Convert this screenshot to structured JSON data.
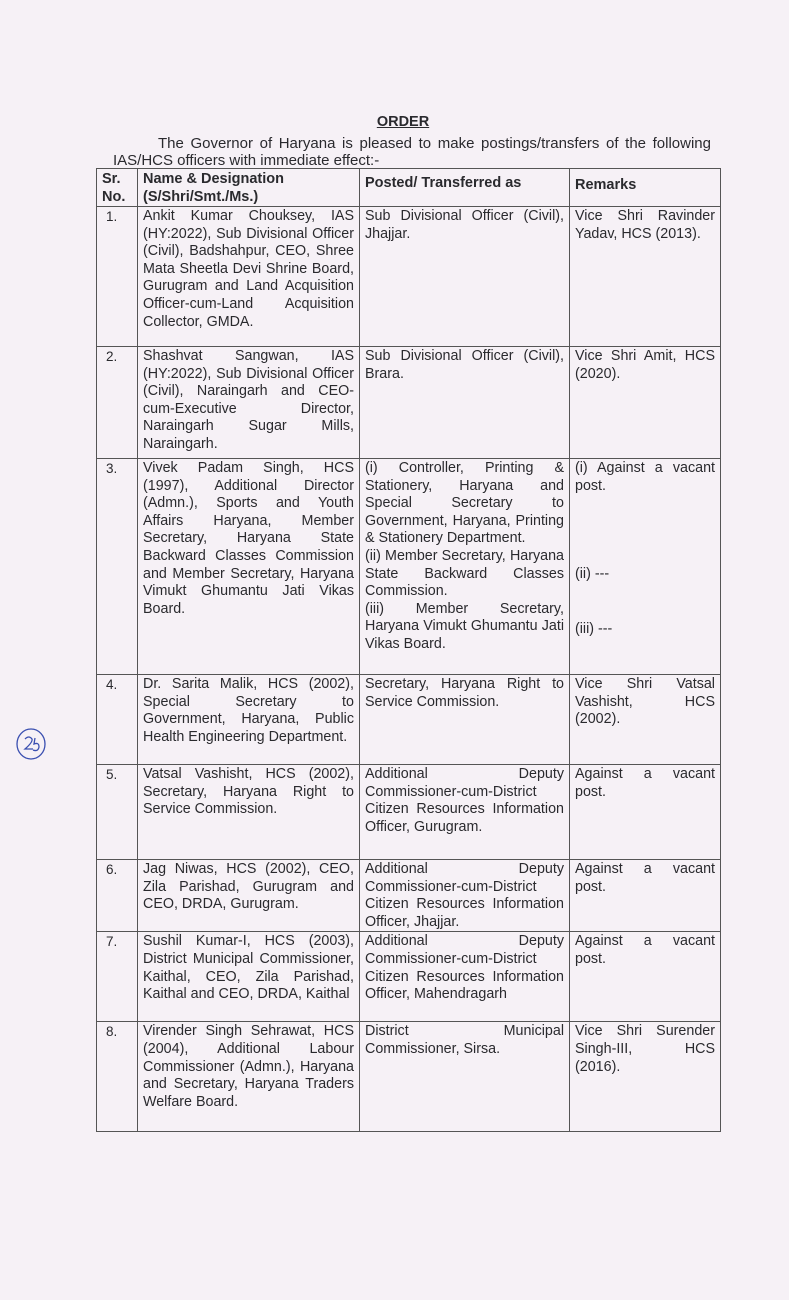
{
  "order_title": "ORDER",
  "intro": "The Governor of Haryana is pleased to make postings/transfers of the following IAS/HCS officers with immediate effect:-",
  "table": {
    "headers": [
      "Sr. No.",
      "Name & Designation (S/Shri/Smt./Ms.)",
      "Posted/ Transferred as",
      "Remarks"
    ],
    "rows": [
      {
        "sr": "1.",
        "name": "Ankit Kumar Chouksey, IAS (HY:2022), Sub Divisional Officer (Civil), Badshahpur, CEO, Shree Mata Sheetla Devi Shrine Board, Gurugram and Land Acquisition Officer-cum-Land Acquisition Collector, GMDA.",
        "posted": [
          "Sub Divisional Officer (Civil), Jhajjar."
        ],
        "remarks": [
          "Vice Shri Ravinder Yadav, HCS (2013)."
        ]
      },
      {
        "sr": "2.",
        "name": "Shashvat Sangwan, IAS (HY:2022), Sub Divisional Officer (Civil), Naraingarh and CEO-cum-Executive Director, Naraingarh Sugar Mills, Naraingarh.",
        "posted": [
          "Sub Divisional Officer (Civil), Brara."
        ],
        "remarks": [
          "Vice Shri Amit, HCS (2020)."
        ]
      },
      {
        "sr": "3.",
        "name": "Vivek Padam Singh, HCS (1997), Additional Director (Admn.), Sports and Youth Affairs Haryana, Member Secretary, Haryana State Backward Classes Commission and Member Secretary, Haryana Vimukt Ghumantu Jati Vikas Board.",
        "posted": [
          "(i) Controller, Printing & Stationery, Haryana and Special Secretary to Government, Haryana, Printing & Stationery Department.",
          "(ii) Member Secretary, Haryana State Backward Classes Commission.",
          "(iii) Member Secretary, Haryana Vimukt Ghumantu Jati Vikas Board."
        ],
        "remarks": [
          "(i) Against a vacant post.",
          "(ii) ---",
          "(iii) ---"
        ]
      },
      {
        "sr": "4.",
        "name": "Dr. Sarita Malik, HCS (2002), Special Secretary to Government, Haryana, Public Health Engineering Department.",
        "posted": [
          "Secretary, Haryana Right to Service Commission."
        ],
        "remarks": [
          "Vice Shri Vatsal Vashisht, HCS (2002)."
        ]
      },
      {
        "sr": "5.",
        "name": "Vatsal Vashisht, HCS (2002), Secretary, Haryana Right to Service Commission.",
        "posted": [
          "Additional Deputy Commissioner-cum-District Citizen Resources Information Officer, Gurugram."
        ],
        "remarks": [
          "Against a vacant post."
        ]
      },
      {
        "sr": "6.",
        "name": "Jag Niwas, HCS (2002), CEO, Zila Parishad, Gurugram and CEO, DRDA, Gurugram.",
        "posted": [
          "Additional Deputy Commissioner-cum-District Citizen Resources Information Officer, Jhajjar."
        ],
        "remarks": [
          "Against a vacant post."
        ]
      },
      {
        "sr": "7.",
        "name": "Sushil Kumar-I, HCS (2003), District Municipal Commissioner, Kaithal, CEO, Zila Parishad, Kaithal and CEO, DRDA, Kaithal",
        "posted": [
          "Additional Deputy Commissioner-cum-District Citizen Resources Information Officer, Mahendragarh"
        ],
        "remarks": [
          "Against a vacant post."
        ]
      },
      {
        "sr": "8.",
        "name": "Virender Singh Sehrawat, HCS (2004), Additional Labour Commissioner (Admn.), Haryana and Secretary, Haryana Traders Welfare Board.",
        "posted": [
          "District Municipal Commissioner, Sirsa."
        ],
        "remarks": [
          "Vice Shri Surender Singh-III, HCS (2016)."
        ]
      }
    ]
  },
  "handwritten_page_mark": "25",
  "colors": {
    "paper": "#f6f1f6",
    "ink": "#2a2a2e",
    "handwriting": "#3a4fb0"
  }
}
